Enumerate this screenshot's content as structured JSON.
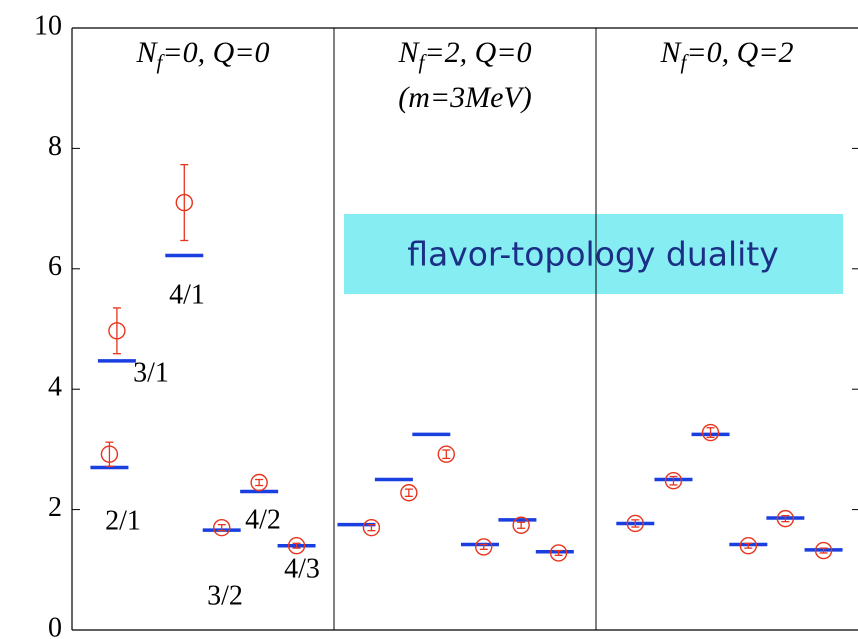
{
  "chart_data": {
    "type": "scatter",
    "xlim": [
      0,
      21
    ],
    "ylim": [
      0,
      10
    ],
    "yticks": [
      0,
      2,
      4,
      6,
      8,
      10
    ],
    "panels": [
      {
        "name": "N",
        "sub": "f",
        "rest": "=0, Q=0"
      },
      {
        "name": "N",
        "sub": "f",
        "rest": "=2, Q=0",
        "note": "(m=3MeV)"
      },
      {
        "name": "N",
        "sub": "f",
        "rest": "=0, Q=2"
      }
    ],
    "panel_dividers": [
      7,
      14
    ],
    "series": [
      {
        "color": "#e8341c",
        "marker": "circle",
        "x": [
          1.0,
          1.2,
          3.0,
          4.0,
          5.0,
          6.0,
          8.0,
          9.0,
          10.0,
          11.0,
          12.0,
          13.0,
          15.05,
          16.07,
          17.06,
          18.07,
          19.06,
          20.08
        ],
        "values": [
          2.92,
          4.97,
          7.1,
          1.7,
          2.45,
          1.4,
          1.7,
          2.28,
          2.92,
          1.38,
          1.74,
          1.28,
          1.77,
          2.48,
          3.28,
          1.4,
          1.85,
          1.32
        ],
        "errors": [
          0.2,
          0.38,
          0.63,
          0.05,
          0.05,
          0.04,
          0.05,
          0.06,
          0.07,
          0.04,
          0.05,
          0.04,
          0.06,
          0.07,
          0.08,
          0.04,
          0.05,
          0.04
        ]
      },
      {
        "color": "#1a3fe0",
        "marker": "hline",
        "x": [
          1.0,
          1.2,
          3.0,
          4.0,
          5.0,
          6.0,
          7.6,
          8.6,
          9.6,
          10.9,
          11.9,
          12.9,
          15.05,
          16.07,
          17.06,
          18.07,
          19.06,
          20.08
        ],
        "values": [
          2.7,
          4.47,
          6.22,
          1.66,
          2.3,
          1.4,
          1.75,
          2.5,
          3.25,
          1.42,
          1.83,
          1.3,
          1.77,
          2.5,
          3.25,
          1.42,
          1.86,
          1.33
        ]
      }
    ],
    "annotations": [
      "2/1",
      "3/1",
      "4/1",
      "3/2",
      "4/2",
      "4/3",
      "flavor-topology duality"
    ]
  }
}
